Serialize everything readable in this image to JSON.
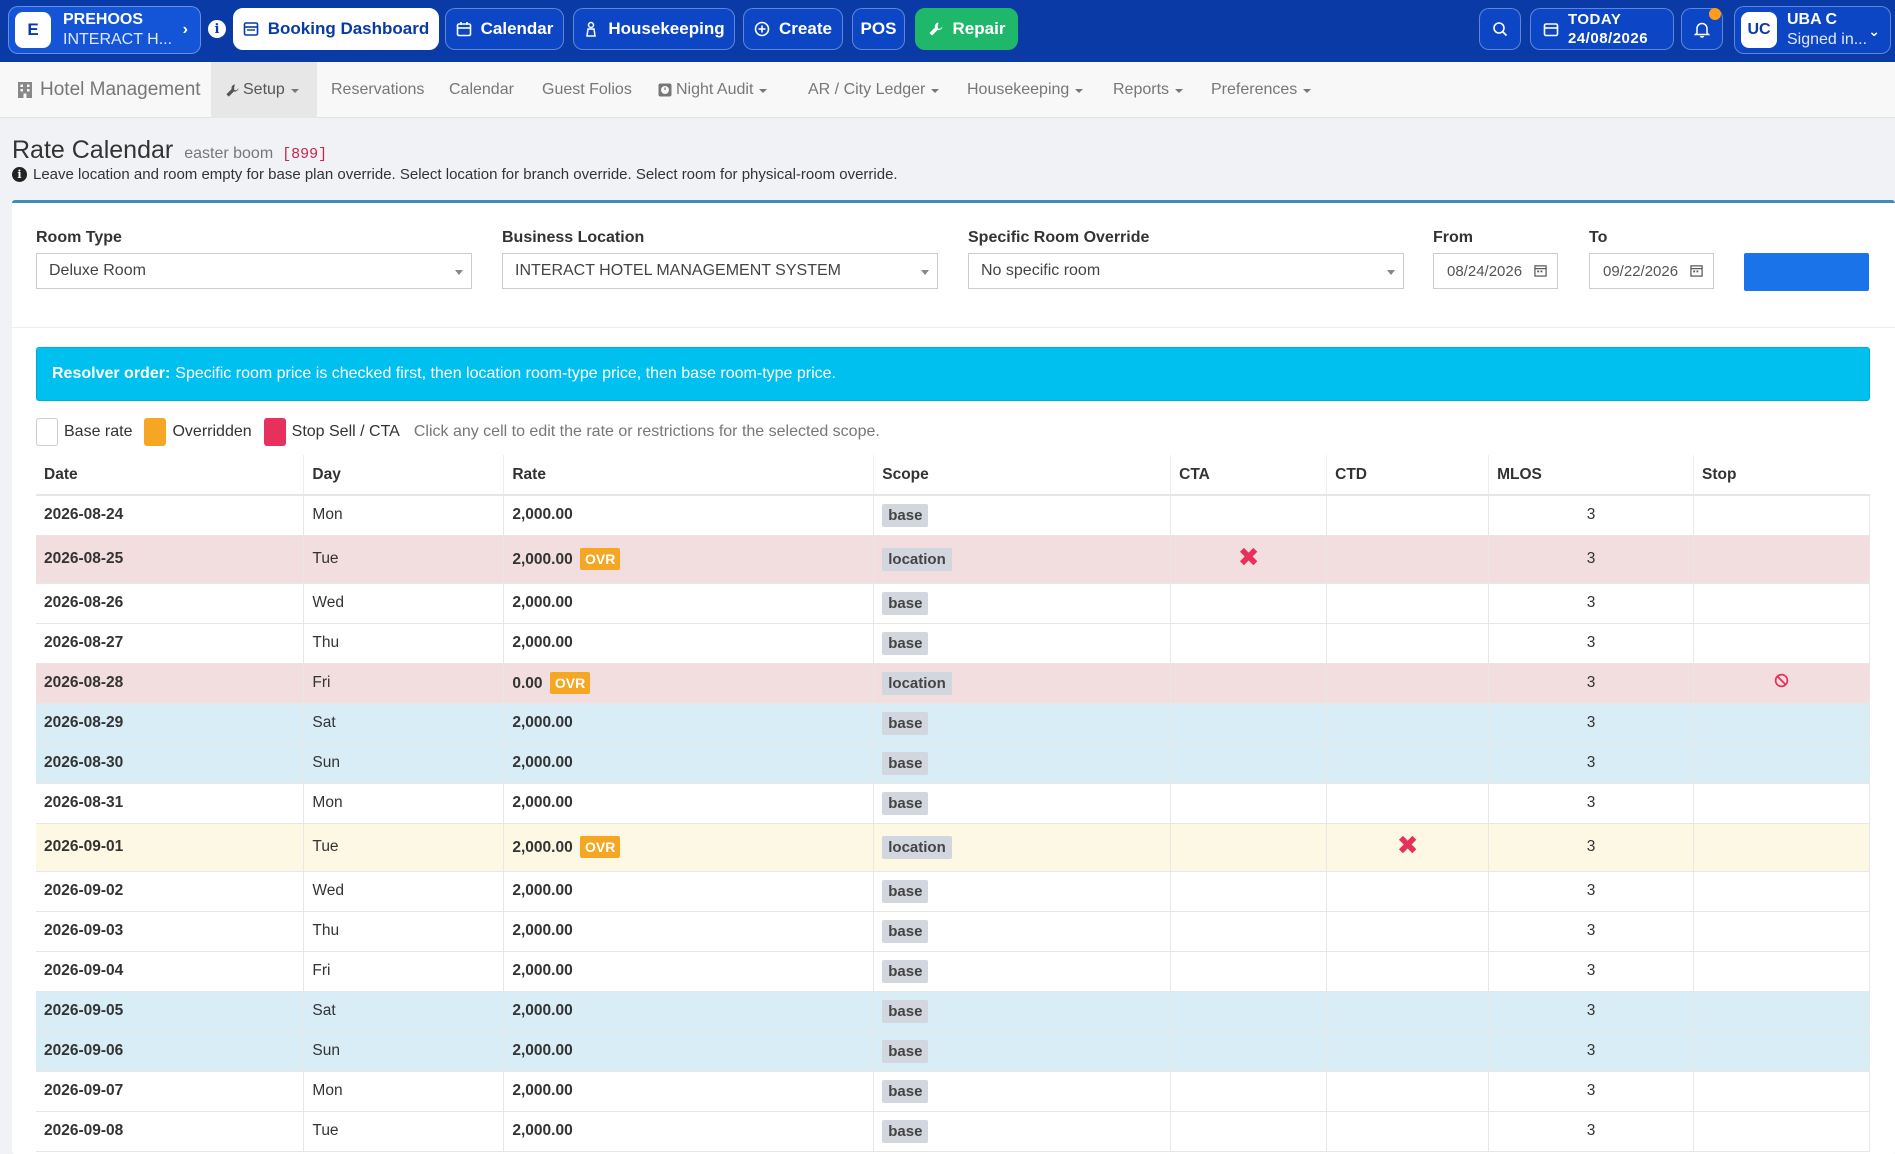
{
  "topbar": {
    "brand_letter": "E",
    "brand_name": "PREHOOS",
    "brand_sub": "INTERACT H...",
    "info_glyph": "i",
    "buttons": {
      "dashboard": "Booking Dashboard",
      "calendar": "Calendar",
      "housekeeping": "Housekeeping",
      "create": "Create",
      "pos": "POS",
      "repair": "Repair"
    },
    "today_label": "TODAY",
    "today_date": "24/08/2026",
    "user_initials": "UC",
    "user_name": "UBA C",
    "user_status": "Signed in..."
  },
  "nav": {
    "brand": "Hotel Management",
    "items": {
      "setup": "Setup",
      "reservations": "Reservations",
      "calendar": "Calendar",
      "folios": "Guest Folios",
      "night_audit": "Night Audit",
      "ar": "AR / City Ledger",
      "housekeeping": "Housekeeping",
      "reports": "Reports",
      "preferences": "Preferences"
    }
  },
  "page": {
    "title": "Rate Calendar",
    "subtitle": "easter boom",
    "code": "[899]",
    "hint": "Leave location and room empty for base plan override. Select location for branch override. Select room for physical-room override."
  },
  "filters": {
    "room_type_label": "Room Type",
    "room_type_value": "Deluxe Room",
    "location_label": "Business Location",
    "location_value": "INTERACT HOTEL MANAGEMENT SYSTEM",
    "room_label": "Specific Room Override",
    "room_value": "No specific room",
    "from_label": "From",
    "from_value": "08/24/2026",
    "to_label": "To",
    "to_value": "09/22/2026"
  },
  "alert": {
    "bold": "Resolver order:",
    "text": "Specific room price is checked first, then location room-type price, then base room-type price."
  },
  "legend": {
    "base": "Base rate",
    "overridden": "Overridden",
    "stop": "Stop Sell / CTA",
    "hint": "Click any cell to edit the rate or restrictions for the selected scope."
  },
  "table": {
    "headers": {
      "date": "Date",
      "day": "Day",
      "rate": "Rate",
      "scope": "Scope",
      "cta": "CTA",
      "ctd": "CTD",
      "mlos": "MLOS",
      "stop": "Stop"
    },
    "ovr_label": "OVR",
    "rows": [
      {
        "date": "2026-08-24",
        "day": "Mon",
        "rate": "2,000.00",
        "scope": "base",
        "mlos": "3"
      },
      {
        "date": "2026-08-25",
        "day": "Tue",
        "rate": "2,000.00",
        "scope": "location",
        "mlos": "3"
      },
      {
        "date": "2026-08-26",
        "day": "Wed",
        "rate": "2,000.00",
        "scope": "base",
        "mlos": "3"
      },
      {
        "date": "2026-08-27",
        "day": "Thu",
        "rate": "2,000.00",
        "scope": "base",
        "mlos": "3"
      },
      {
        "date": "2026-08-28",
        "day": "Fri",
        "rate": "0.00",
        "scope": "location",
        "mlos": "3"
      },
      {
        "date": "2026-08-29",
        "day": "Sat",
        "rate": "2,000.00",
        "scope": "base",
        "mlos": "3"
      },
      {
        "date": "2026-08-30",
        "day": "Sun",
        "rate": "2,000.00",
        "scope": "base",
        "mlos": "3"
      },
      {
        "date": "2026-08-31",
        "day": "Mon",
        "rate": "2,000.00",
        "scope": "base",
        "mlos": "3"
      },
      {
        "date": "2026-09-01",
        "day": "Tue",
        "rate": "2,000.00",
        "scope": "location",
        "mlos": "3"
      },
      {
        "date": "2026-09-02",
        "day": "Wed",
        "rate": "2,000.00",
        "scope": "base",
        "mlos": "3"
      },
      {
        "date": "2026-09-03",
        "day": "Thu",
        "rate": "2,000.00",
        "scope": "base",
        "mlos": "3"
      },
      {
        "date": "2026-09-04",
        "day": "Fri",
        "rate": "2,000.00",
        "scope": "base",
        "mlos": "3"
      },
      {
        "date": "2026-09-05",
        "day": "Sat",
        "rate": "2,000.00",
        "scope": "base",
        "mlos": "3"
      },
      {
        "date": "2026-09-06",
        "day": "Sun",
        "rate": "2,000.00",
        "scope": "base",
        "mlos": "3"
      },
      {
        "date": "2026-09-07",
        "day": "Mon",
        "rate": "2,000.00",
        "scope": "base",
        "mlos": "3"
      },
      {
        "date": "2026-09-08",
        "day": "Tue",
        "rate": "2,000.00",
        "scope": "base",
        "mlos": "3"
      }
    ]
  },
  "colors": {
    "topbar": "#0a3aa6",
    "repair": "#1fb86b",
    "alert": "#00c0ef",
    "overridden": "#f5a623",
    "stop": "#e7305b",
    "weekend_row": "#d9edf7",
    "override_row": "#f2dede",
    "warning_row": "#fcf8e3"
  }
}
